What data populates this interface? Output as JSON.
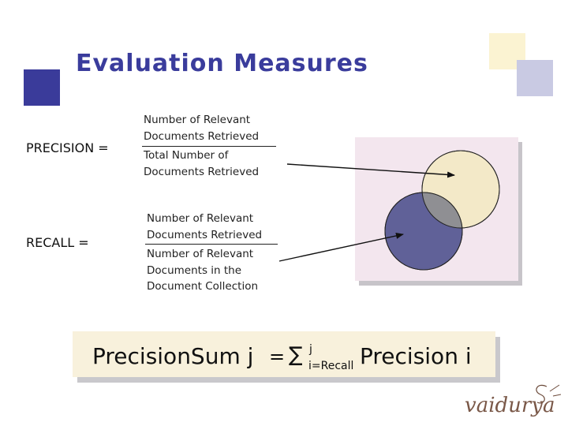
{
  "title": "Evaluation Measures",
  "precision": {
    "label": "PRECISION =",
    "numerator": [
      "Number of Relevant",
      "Documents Retrieved"
    ],
    "denominator": [
      "Total Number of",
      "Documents Retrieved"
    ]
  },
  "recall": {
    "label": "RECALL =",
    "numerator": [
      "Number of Relevant",
      "Documents Retrieved"
    ],
    "denominator": [
      "Number of Relevant",
      "Documents in the",
      "Document Collection"
    ]
  },
  "formula": {
    "left": "PrecisionSum j",
    "equals": "=",
    "sigma": "∑",
    "upper": "j",
    "lower": "i=Recall",
    "right": "Precision i"
  },
  "logo_text": "vaidurya",
  "colors": {
    "title": "#3a3c9c",
    "venn_retrieved": "#f3e9c8",
    "venn_relevant": "#606198",
    "venn_overlap": "#8f8f93"
  }
}
